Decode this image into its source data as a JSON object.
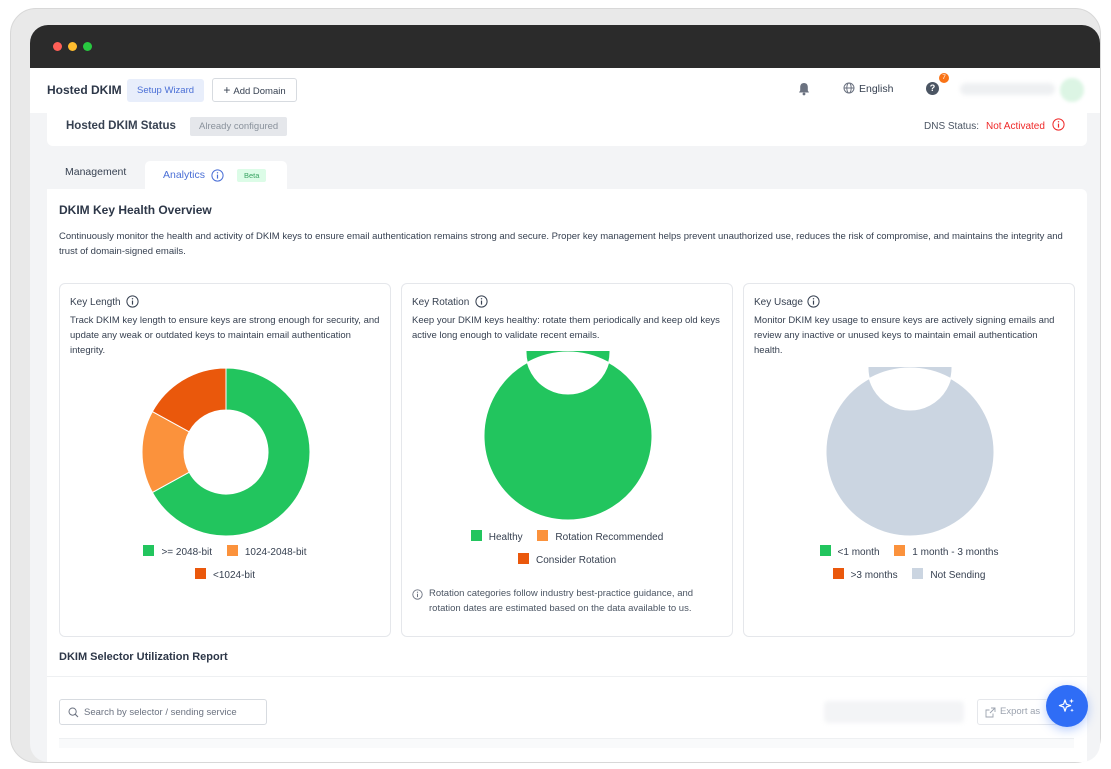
{
  "header": {
    "app_title": "Hosted DKIM",
    "setup_wizard": "Setup Wizard",
    "add_domain": "Add Domain",
    "language": "English",
    "help_badge": "7"
  },
  "status": {
    "title": "Hosted DKIM Status",
    "pill": "Already configured",
    "dns_label": "DNS Status:",
    "dns_value": "Not Activated"
  },
  "tabs": {
    "management": "Management",
    "analytics": "Analytics",
    "beta": "Beta"
  },
  "overview": {
    "title": "DKIM Key Health Overview",
    "description": "Continuously monitor the health and activity of DKIM keys to ensure email authentication remains strong and secure. Proper key management helps prevent unauthorized use, reduces the risk of compromise, and maintains the integrity and trust of domain-signed emails."
  },
  "cards": {
    "key_length": {
      "title": "Key Length",
      "description": "Track DKIM key length to ensure keys are strong enough for security, and update any weak or outdated keys to maintain email authentication integrity.",
      "legend": [
        ">= 2048-bit",
        "1024-2048-bit",
        "<1024-bit"
      ]
    },
    "key_rotation": {
      "title": "Key Rotation",
      "description": "Keep your DKIM keys healthy: rotate them periodically and keep old keys active long enough to validate recent emails.",
      "legend": [
        "Healthy",
        "Rotation Recommended",
        "Consider Rotation"
      ],
      "note": "Rotation categories follow industry best-practice guidance, and rotation dates are estimated based on the data available to us."
    },
    "key_usage": {
      "title": "Key Usage",
      "description": "Monitor DKIM key usage to ensure keys are actively signing emails and review any inactive or unused keys to maintain email authentication health.",
      "legend": [
        "<1 month",
        "1 month - 3 months",
        ">3 months",
        "Not Sending"
      ]
    }
  },
  "colors": {
    "green": "#22c55e",
    "orange": "#fb923c",
    "dark_orange": "#ea580c",
    "gray": "#cbd5e1",
    "accent": "#4a6fd6"
  },
  "chart_data": [
    {
      "type": "pie",
      "title": "Key Length",
      "categories": [
        ">= 2048-bit",
        "1024-2048-bit",
        "<1024-bit"
      ],
      "values": [
        67,
        16,
        17
      ],
      "colors": [
        "#22c55e",
        "#fb923c",
        "#ea580c"
      ]
    },
    {
      "type": "pie",
      "title": "Key Rotation",
      "categories": [
        "Healthy",
        "Rotation Recommended",
        "Consider Rotation"
      ],
      "values": [
        100,
        0,
        0
      ],
      "colors": [
        "#22c55e",
        "#fb923c",
        "#ea580c"
      ]
    },
    {
      "type": "pie",
      "title": "Key Usage",
      "categories": [
        "<1 month",
        "1 month - 3 months",
        ">3 months",
        "Not Sending"
      ],
      "values": [
        0,
        0,
        0,
        100
      ],
      "colors": [
        "#22c55e",
        "#fb923c",
        "#ea580c",
        "#cbd5e1"
      ]
    }
  ],
  "report": {
    "title": "DKIM Selector Utilization Report",
    "search_placeholder": "Search by selector / sending service",
    "export_label": "Export as"
  }
}
